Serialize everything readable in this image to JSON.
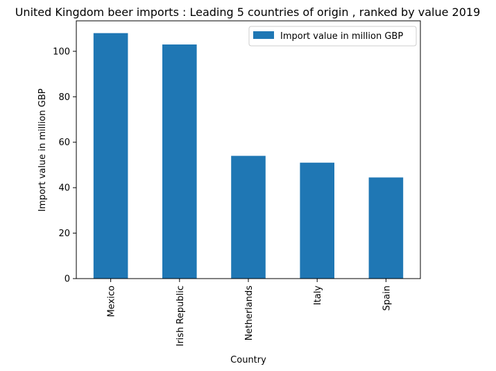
{
  "chart_data": {
    "type": "bar",
    "title": "United Kingdom beer imports : Leading 5 countries of origin , ranked by value 2019",
    "xlabel": "Country",
    "ylabel": "Import value in million GBP",
    "categories": [
      "Mexico",
      "Irish Republic",
      "Netherlands",
      "Italy",
      "Spain"
    ],
    "series": [
      {
        "name": "Import value in million GBP",
        "values": [
          108,
          103,
          54,
          51,
          44.5
        ],
        "color": "#1f77b4"
      }
    ],
    "yticks": [
      0,
      20,
      40,
      60,
      80,
      100
    ],
    "ylim": [
      0,
      113.4
    ],
    "grid": false,
    "legend_position": "top-right"
  }
}
